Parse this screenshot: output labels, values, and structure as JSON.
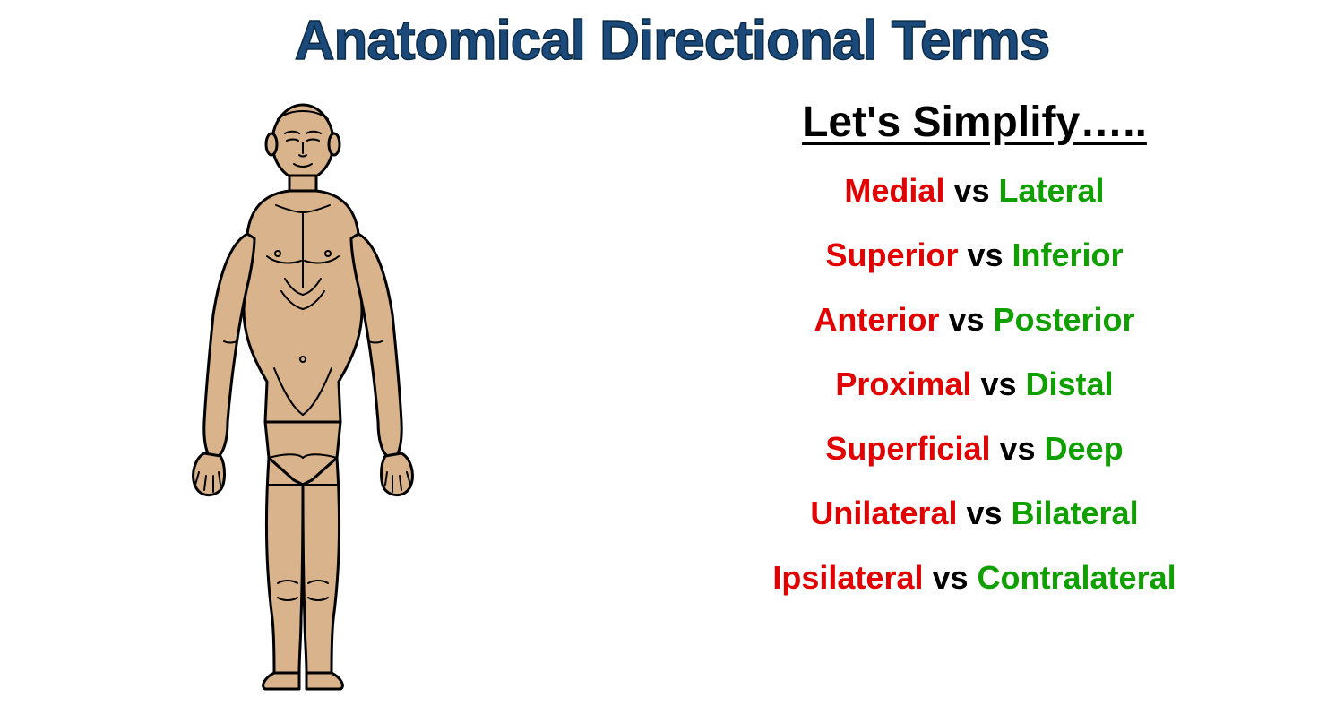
{
  "title": "Anatomical Directional Terms",
  "title_color": "#1b4a7a",
  "title_stroke": "#0a2a45",
  "title_fontsize": 62,
  "subtitle": "Let's Simplify…..",
  "subtitle_color": "#000000",
  "subtitle_fontsize": 48,
  "vs_text": "vs",
  "vs_color": "#000000",
  "left_color": "#e30000",
  "right_color": "#0fa000",
  "pair_fontsize": 36,
  "pair_gap": 30,
  "pairs": [
    {
      "left": "Medial",
      "right": "Lateral"
    },
    {
      "left": "Superior",
      "right": "Inferior"
    },
    {
      "left": "Anterior",
      "right": "Posterior"
    },
    {
      "left": "Proximal",
      "right": "Distal"
    },
    {
      "left": "Superficial",
      "right": "Deep"
    },
    {
      "left": "Unilateral",
      "right": "Bilateral"
    },
    {
      "left": "Ipsilateral",
      "right": "Contralateral"
    }
  ],
  "figure": {
    "skin_fill": "#d9b38c",
    "outline": "#000000",
    "outline_width": 3
  },
  "background_color": "#ffffff"
}
